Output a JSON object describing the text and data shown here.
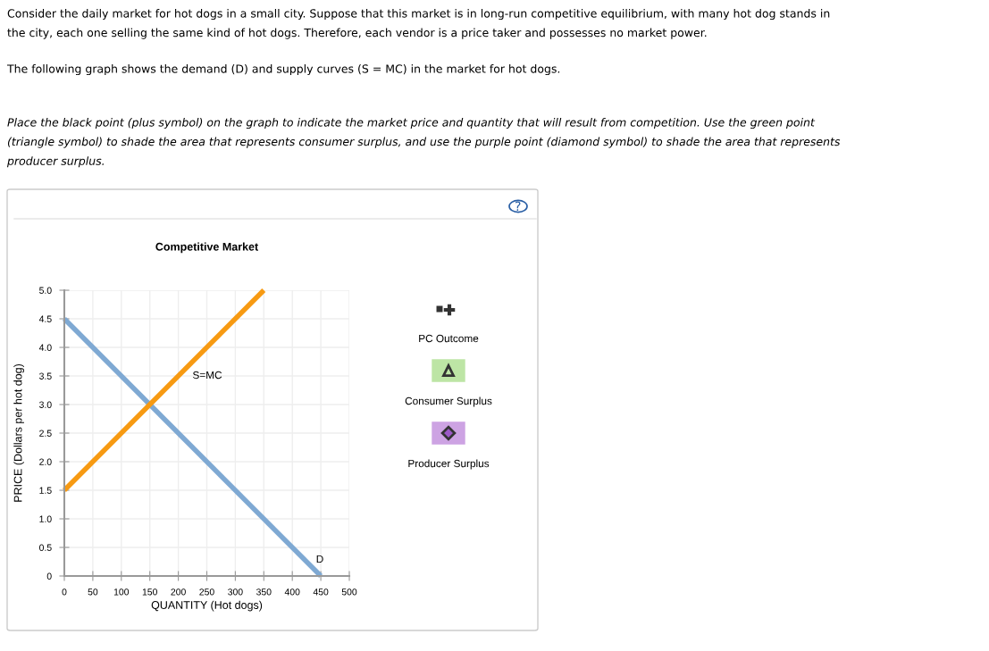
{
  "chart_data": {
    "type": "line",
    "title": "Competitive Market",
    "xlabel": "QUANTITY (Hot dogs)",
    "ylabel": "PRICE (Dollars per hot dog)",
    "series": [
      {
        "x": [
          0,
          450
        ],
        "values": [
          4.5,
          0
        ],
        "color": "#7fa9d3"
      },
      {
        "x": [
          0,
          350
        ],
        "values": [
          1.5,
          5.0
        ],
        "color": "#f79a12"
      }
    ],
    "xlim": [
      0,
      500
    ],
    "xticks": [
      0,
      50,
      100,
      150,
      200,
      250,
      300,
      350,
      400,
      450,
      500
    ],
    "ylim": [
      0,
      5
    ],
    "yticks": [
      0,
      {
        "value": 0.5,
        "label": "0.5"
      },
      {
        "value": 1,
        "label": "1.0"
      },
      {
        "value": 1.5,
        "label": "1.5"
      },
      {
        "value": 2,
        "label": "2.0"
      },
      {
        "value": 2.5,
        "label": "2.5"
      },
      {
        "value": 3,
        "label": "3.0"
      },
      {
        "value": 3.5,
        "label": "3.5"
      },
      {
        "value": 4,
        "label": "4.0"
      },
      {
        "value": 4.5,
        "label": "4.5"
      },
      {
        "value": 5,
        "label": "5.0"
      }
    ],
    "grid": true,
    "marker": "none",
    "line_style": "solid",
    "annotations": [
      "S=MC",
      "D",
      "Consider the daily market for hot dogs in a small city. Suppose that this market is in long-run competitive equilibrium, with many hot dog stands in\nthe city, each one selling the same kind of hot dogs. Therefore, each vendor is a price taker and possesses no market power.",
      "The following graph shows the demand (D) and supply curves (S = MC) in the market for hot dogs.",
      "Place the black point (plus symbol) on the graph to indicate the market price and quantity that will result from competition. Use the green point\n(triangle symbol) to shade the area that represents consumer surplus, and use the purple point (diamond symbol) to shade the area that represents\nproducer surplus.",
      "PC Outcome",
      "Consumer Surplus",
      "Producer Surplus"
    ]
  }
}
